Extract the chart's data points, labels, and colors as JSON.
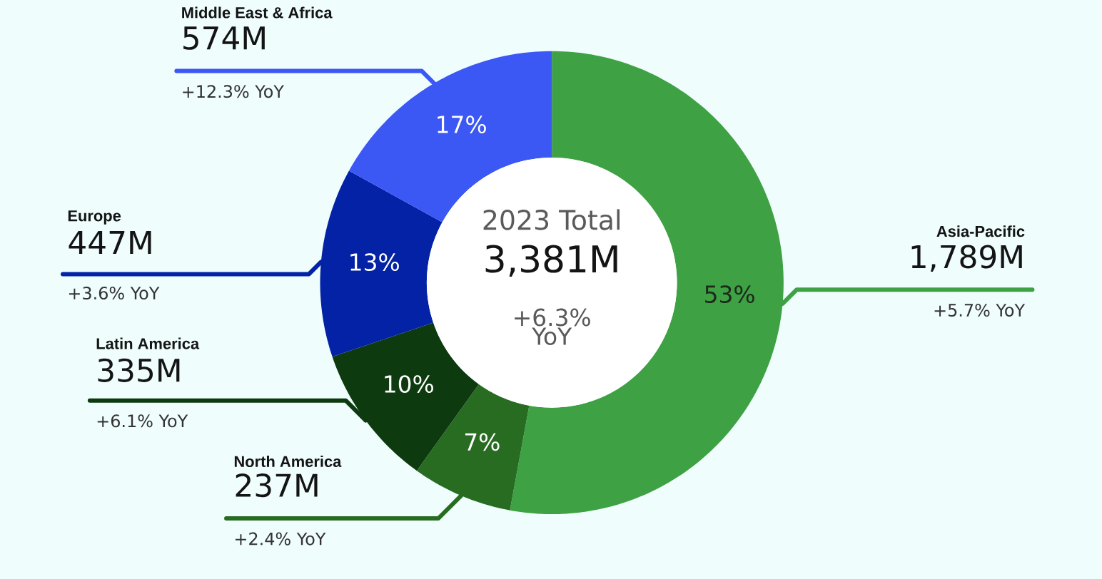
{
  "chart_data": {
    "type": "donut",
    "categories": [
      "Asia-Pacific",
      "North America",
      "Latin America",
      "Europe",
      "Middle East & Africa"
    ],
    "values": [
      1789,
      237,
      335,
      447,
      574
    ],
    "value_labels": [
      "1,789M",
      "237M",
      "335M",
      "447M",
      "574M"
    ],
    "colors": [
      "#3ea143",
      "#276c21",
      "#0e3a10",
      "#0322a6",
      "#3b57f4"
    ],
    "annotations": [
      "2023 Total",
      "3,381M",
      "+6.3% YoY",
      "53%",
      "7%",
      "10%",
      "13%",
      "17%",
      "+5.7% YoY",
      "+2.4% YoY",
      "+6.1% YoY",
      "+3.6% YoY",
      "+12.3% YoY"
    ]
  }
}
